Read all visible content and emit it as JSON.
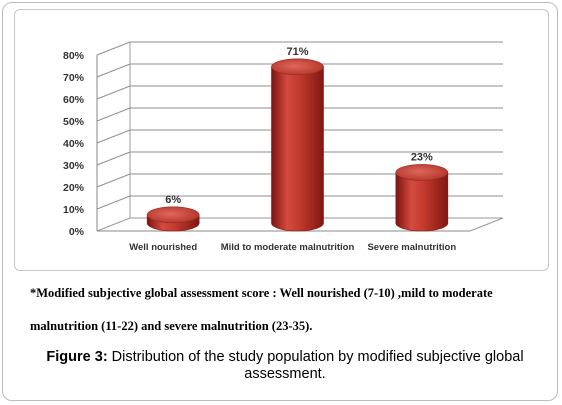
{
  "chart_data": {
    "type": "bar",
    "categories": [
      "Well nourished",
      "Mild to moderate malnutrition",
      "Severe malnutrition"
    ],
    "values": [
      6,
      71,
      23
    ],
    "data_labels": [
      "6%",
      "71%",
      "23%"
    ],
    "y_ticks": [
      "0%",
      "10%",
      "20%",
      "30%",
      "40%",
      "50%",
      "60%",
      "70%",
      "80%"
    ],
    "ylim": [
      0,
      80
    ],
    "grid": true,
    "style": "3d-cylinder",
    "bar_color": "#c0392b"
  },
  "note": {
    "line1": "*Modified subjective global assessment score : Well nourished (7-10) ,mild to moderate",
    "line2": "malnutrition (11-22) and severe malnutrition (23-35)."
  },
  "caption": {
    "label": "Figure 3:",
    "text": " Distribution of the study population by modified subjective global assessment."
  }
}
